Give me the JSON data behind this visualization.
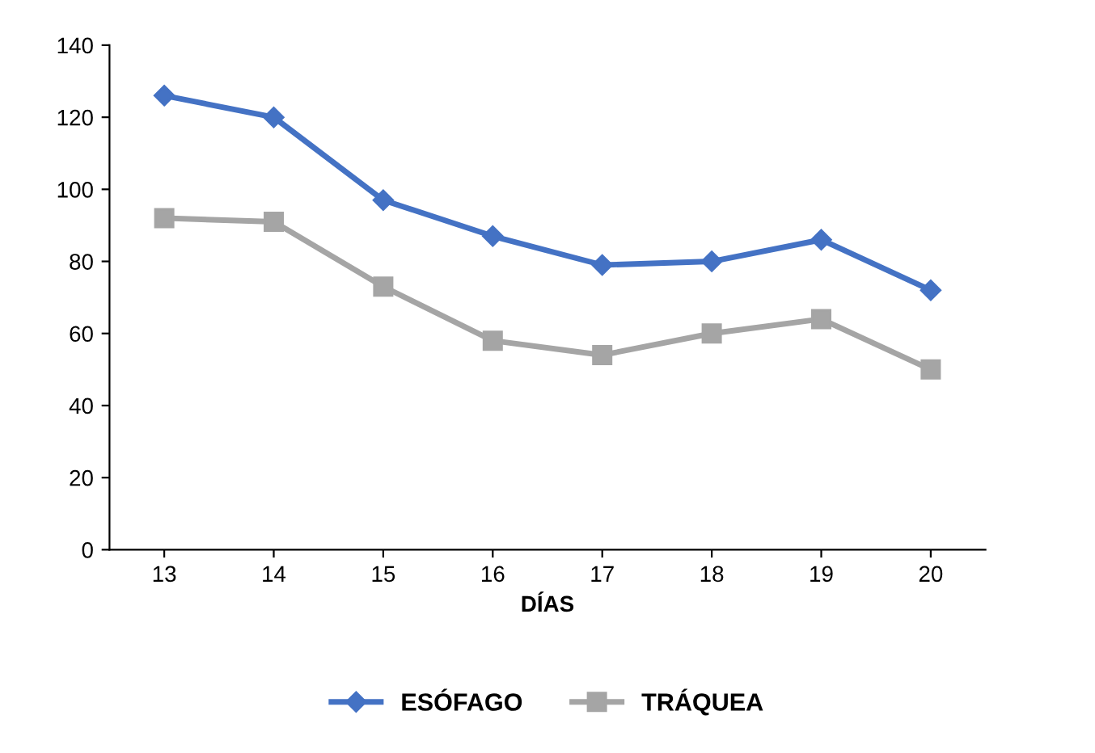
{
  "chart_data": {
    "type": "line",
    "xlabel": "DÍAS",
    "categories": [
      "13",
      "14",
      "15",
      "16",
      "17",
      "18",
      "19",
      "20"
    ],
    "series": [
      {
        "name": "ESÓFAGO",
        "color": "#4472c4",
        "marker": "diamond",
        "values": [
          126,
          120,
          97,
          87,
          79,
          80,
          86,
          72
        ]
      },
      {
        "name": "TRÁQUEA",
        "color": "#a5a5a5",
        "marker": "square",
        "values": [
          92,
          91,
          73,
          58,
          54,
          60,
          64,
          50
        ]
      }
    ],
    "ylim": [
      0,
      140
    ],
    "yticks": [
      0,
      20,
      40,
      60,
      80,
      100,
      120,
      140
    ],
    "grid": false,
    "legend": "bottom"
  }
}
